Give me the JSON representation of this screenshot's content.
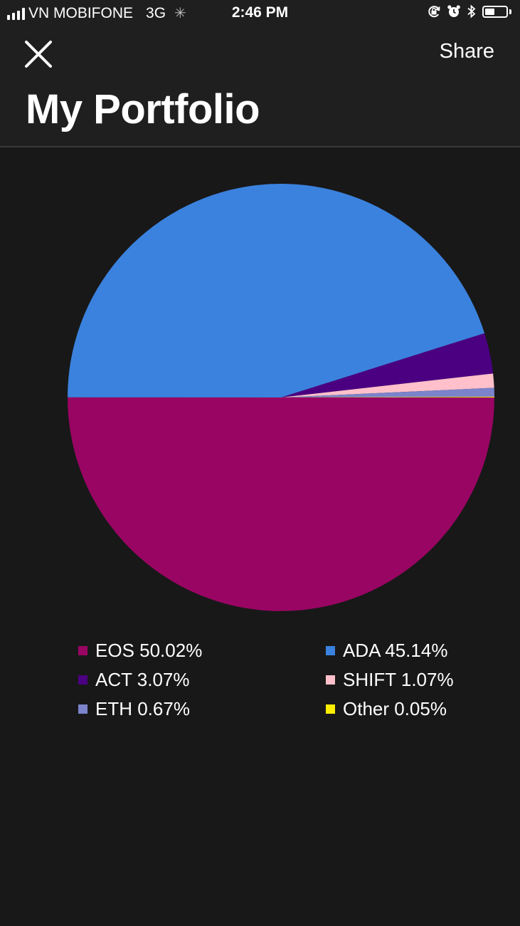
{
  "status_bar": {
    "carrier": "VN MOBIFONE",
    "network": "3G",
    "time": "2:46 PM",
    "battery_level": 0.45,
    "icons": [
      "signal-icon",
      "loading-spinner-icon",
      "orientation-lock-icon",
      "alarm-icon",
      "bluetooth-icon",
      "battery-icon"
    ]
  },
  "header": {
    "close_icon": "close-icon",
    "share_label": "Share",
    "title": "My Portfolio"
  },
  "chart_data": {
    "type": "pie",
    "title": "",
    "legend_position": "bottom",
    "slices": [
      {
        "label": "EOS",
        "value": 50.02,
        "display": "EOS 50.02%",
        "color": "#990563"
      },
      {
        "label": "ADA",
        "value": 45.14,
        "display": "ADA 45.14%",
        "color": "#3b82de"
      },
      {
        "label": "ACT",
        "value": 3.07,
        "display": "ACT 3.07%",
        "color": "#4b0082"
      },
      {
        "label": "SHIFT",
        "value": 1.07,
        "display": "SHIFT 1.07%",
        "color": "#ffc0cb"
      },
      {
        "label": "ETH",
        "value": 0.67,
        "display": "ETH 0.67%",
        "color": "#7b83cb"
      },
      {
        "label": "Other",
        "value": 0.05,
        "display": "Other 0.05%",
        "color": "#ffee00"
      }
    ]
  }
}
